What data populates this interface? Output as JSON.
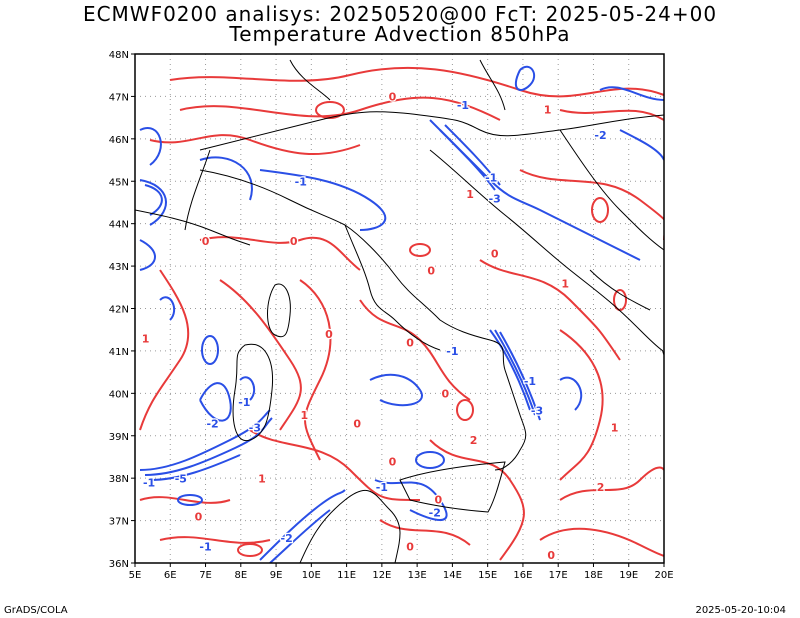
{
  "title_line1": "ECMWF0200 analisys: 20250520@00 FcT: 2025-05-24+00",
  "title_line2": "Temperature Advection 850hPa",
  "footer_left": "GrADS/COLA",
  "footer_right": "2025-05-20-10:04",
  "colors": {
    "positive": "#e83a3a",
    "negative": "#2a4fe6",
    "coast": "#000000",
    "grid": "#9a9a9a"
  },
  "map": {
    "lon_range": [
      5,
      20
    ],
    "lat_range": [
      36,
      48
    ],
    "grid": "dotted",
    "lon_labels": [
      "5E",
      "6E",
      "7E",
      "8E",
      "9E",
      "10E",
      "11E",
      "12E",
      "13E",
      "14E",
      "15E",
      "16E",
      "17E",
      "18E",
      "19E",
      "20E"
    ],
    "lat_labels": [
      "36N",
      "37N",
      "38N",
      "39N",
      "40N",
      "41N",
      "42N",
      "43N",
      "44N",
      "45N",
      "46N",
      "47N",
      "48N"
    ]
  },
  "contour_labels": [
    {
      "text": "-1",
      "lon": 14.3,
      "lat": 46.7,
      "sign": "neg"
    },
    {
      "text": "-1",
      "lon": 9.7,
      "lat": 44.9,
      "sign": "neg"
    },
    {
      "text": "-1",
      "lon": 15.1,
      "lat": 45.0,
      "sign": "neg"
    },
    {
      "text": "-3",
      "lon": 15.2,
      "lat": 44.5,
      "sign": "neg"
    },
    {
      "text": "-2",
      "lon": 18.2,
      "lat": 46.0,
      "sign": "neg"
    },
    {
      "text": "-1",
      "lon": 14.0,
      "lat": 40.9,
      "sign": "neg"
    },
    {
      "text": "-3",
      "lon": 16.4,
      "lat": 39.5,
      "sign": "neg"
    },
    {
      "text": "-1",
      "lon": 16.2,
      "lat": 40.2,
      "sign": "neg"
    },
    {
      "text": "-2",
      "lon": 7.2,
      "lat": 39.2,
      "sign": "neg"
    },
    {
      "text": "-1",
      "lon": 8.1,
      "lat": 39.7,
      "sign": "neg"
    },
    {
      "text": "-3",
      "lon": 8.4,
      "lat": 39.1,
      "sign": "neg"
    },
    {
      "text": "-5",
      "lon": 6.3,
      "lat": 37.9,
      "sign": "neg"
    },
    {
      "text": "-1",
      "lon": 5.4,
      "lat": 37.8,
      "sign": "neg"
    },
    {
      "text": "-2",
      "lon": 9.3,
      "lat": 36.5,
      "sign": "neg"
    },
    {
      "text": "-2",
      "lon": 13.5,
      "lat": 37.1,
      "sign": "neg"
    },
    {
      "text": "-1",
      "lon": 12.0,
      "lat": 37.7,
      "sign": "neg"
    },
    {
      "text": "-1",
      "lon": 7.0,
      "lat": 36.3,
      "sign": "neg"
    },
    {
      "text": "1",
      "lon": 16.7,
      "lat": 46.6,
      "sign": "pos"
    },
    {
      "text": "0",
      "lon": 12.3,
      "lat": 46.9,
      "sign": "pos"
    },
    {
      "text": "0",
      "lon": 7.0,
      "lat": 43.5,
      "sign": "pos"
    },
    {
      "text": "0",
      "lon": 9.5,
      "lat": 43.5,
      "sign": "pos"
    },
    {
      "text": "0",
      "lon": 13.4,
      "lat": 42.8,
      "sign": "pos"
    },
    {
      "text": "0",
      "lon": 15.2,
      "lat": 43.2,
      "sign": "pos"
    },
    {
      "text": "1",
      "lon": 14.5,
      "lat": 44.6,
      "sign": "pos"
    },
    {
      "text": "0",
      "lon": 10.5,
      "lat": 41.3,
      "sign": "pos"
    },
    {
      "text": "1",
      "lon": 5.3,
      "lat": 41.2,
      "sign": "pos"
    },
    {
      "text": "0",
      "lon": 12.8,
      "lat": 41.1,
      "sign": "pos"
    },
    {
      "text": "0",
      "lon": 13.8,
      "lat": 39.9,
      "sign": "pos"
    },
    {
      "text": "2",
      "lon": 14.6,
      "lat": 38.8,
      "sign": "pos"
    },
    {
      "text": "1",
      "lon": 9.8,
      "lat": 39.4,
      "sign": "pos"
    },
    {
      "text": "0",
      "lon": 11.3,
      "lat": 39.2,
      "sign": "pos"
    },
    {
      "text": "0",
      "lon": 12.3,
      "lat": 38.3,
      "sign": "pos"
    },
    {
      "text": "0",
      "lon": 13.6,
      "lat": 37.4,
      "sign": "pos"
    },
    {
      "text": "0",
      "lon": 6.8,
      "lat": 37.0,
      "sign": "pos"
    },
    {
      "text": "1",
      "lon": 8.6,
      "lat": 37.9,
      "sign": "pos"
    },
    {
      "text": "2",
      "lon": 18.2,
      "lat": 37.7,
      "sign": "pos"
    },
    {
      "text": "1",
      "lon": 18.6,
      "lat": 39.1,
      "sign": "pos"
    },
    {
      "text": "1",
      "lon": 17.2,
      "lat": 42.5,
      "sign": "pos"
    },
    {
      "text": "0",
      "lon": 12.8,
      "lat": 36.3,
      "sign": "pos"
    },
    {
      "text": "0",
      "lon": 16.8,
      "lat": 36.1,
      "sign": "pos"
    }
  ]
}
